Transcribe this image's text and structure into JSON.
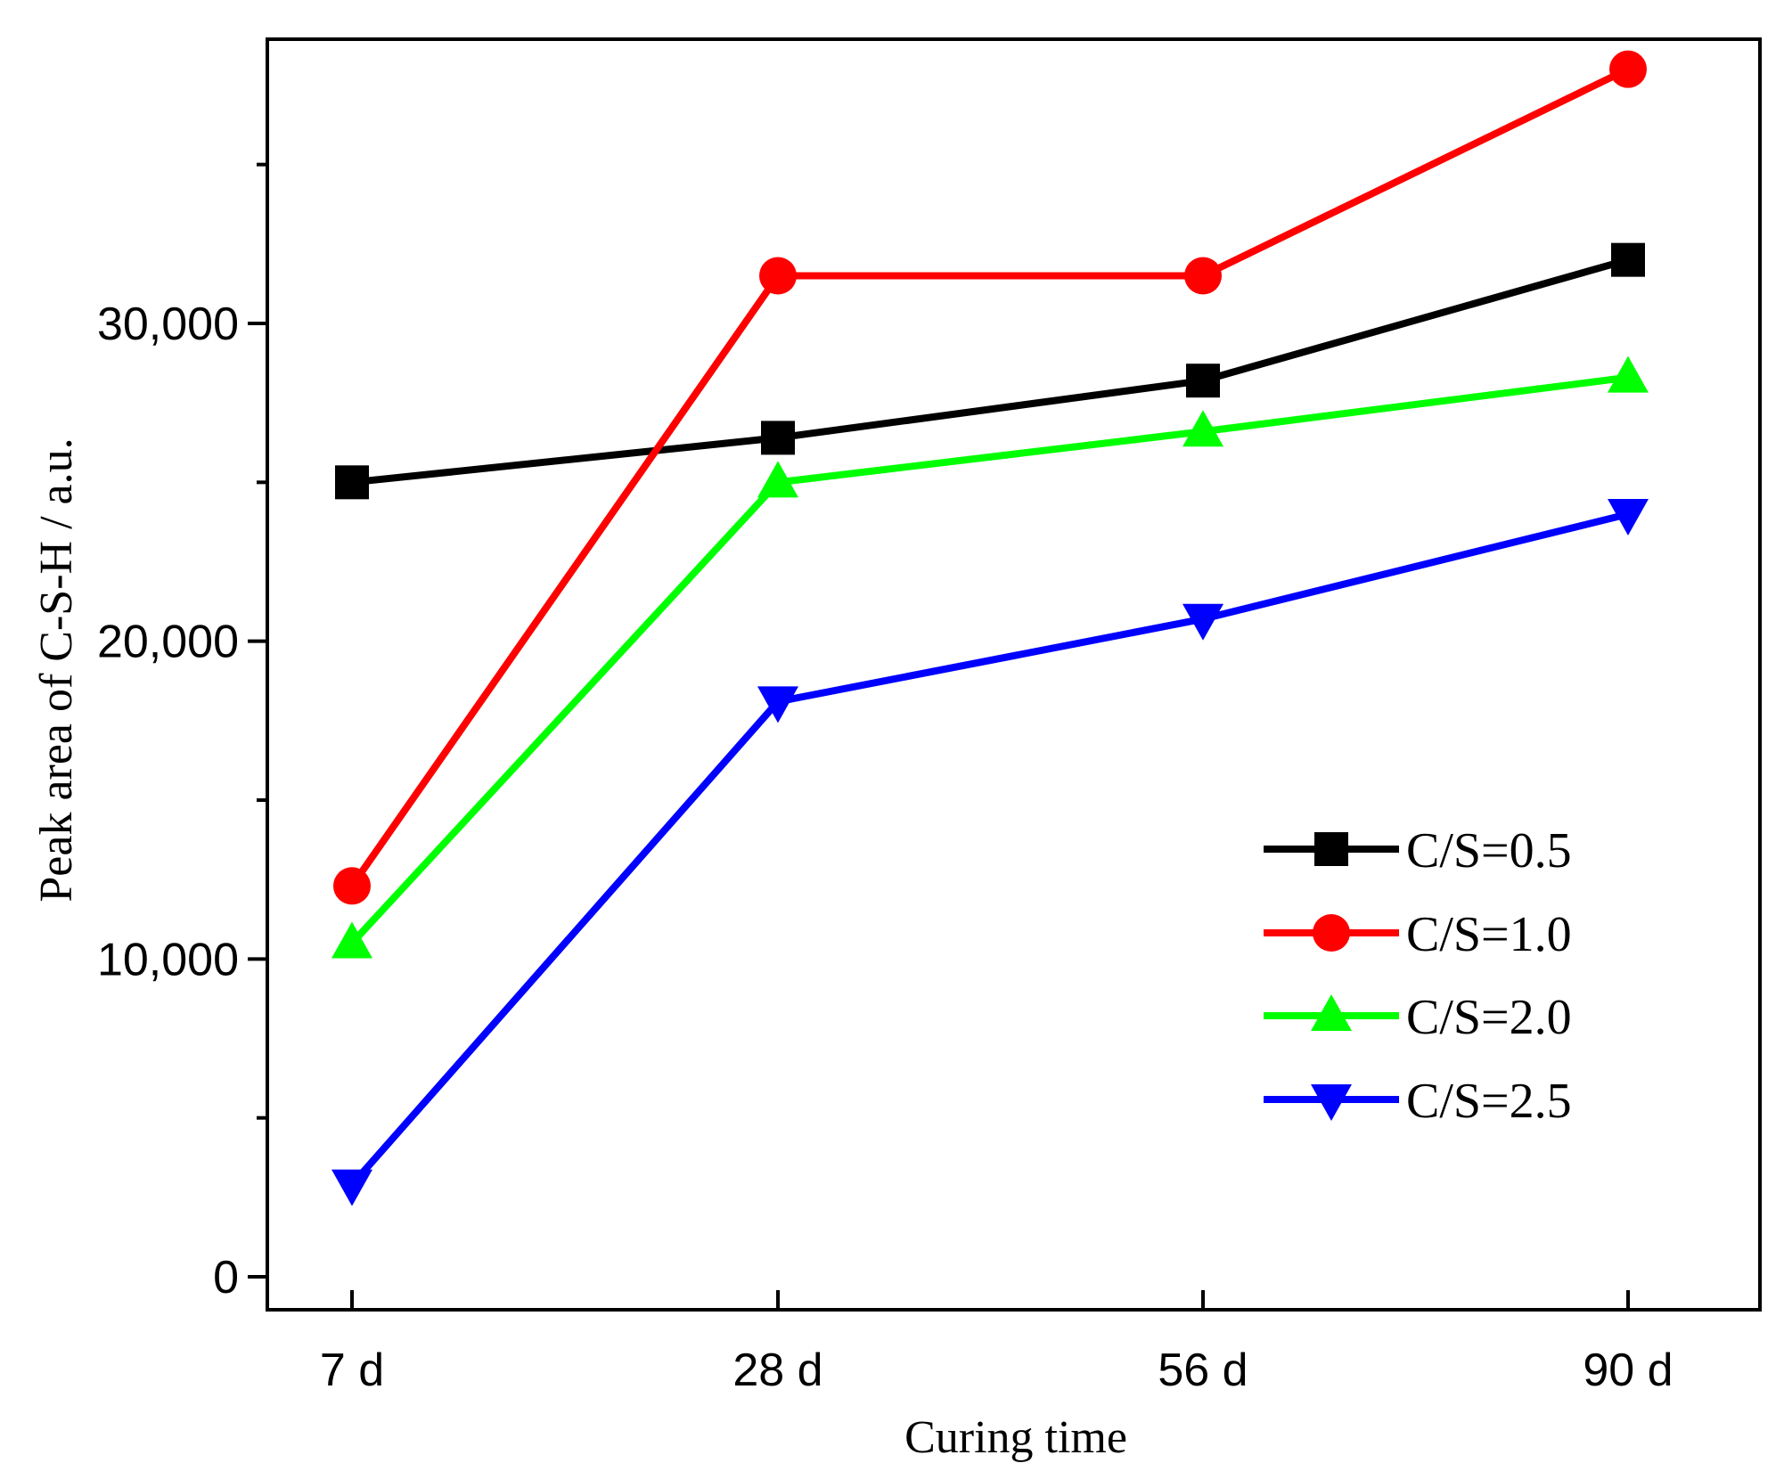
{
  "chart_data": {
    "type": "line",
    "title": "",
    "xlabel": "Curing time",
    "ylabel": "Peak area of C-S-H / a.u.",
    "categories": [
      "7 d",
      "28 d",
      "56 d",
      "90 d"
    ],
    "ylim": [
      -1000,
      39000
    ],
    "yticks": [
      0,
      10000,
      20000,
      30000
    ],
    "ytick_labels": [
      "0",
      "10,000",
      "20,000",
      "30,000"
    ],
    "y_minor_ticks": [
      5000,
      15000,
      25000,
      35000
    ],
    "grid": false,
    "legend_position": "lower-right",
    "series": [
      {
        "name": "C/S=0.5",
        "color": "#000000",
        "marker": "square",
        "values": [
          25000,
          26400,
          28200,
          32000
        ]
      },
      {
        "name": "C/S=1.0",
        "color": "#ff0000",
        "marker": "circle",
        "values": [
          12300,
          31500,
          31500,
          38000
        ]
      },
      {
        "name": "C/S=2.0",
        "color": "#00ff00",
        "marker": "triangle-up",
        "values": [
          10500,
          25000,
          26600,
          28300
        ]
      },
      {
        "name": "C/S=2.5",
        "color": "#0000ff",
        "marker": "triangle-down",
        "values": [
          2900,
          18100,
          20700,
          24000
        ]
      }
    ]
  }
}
